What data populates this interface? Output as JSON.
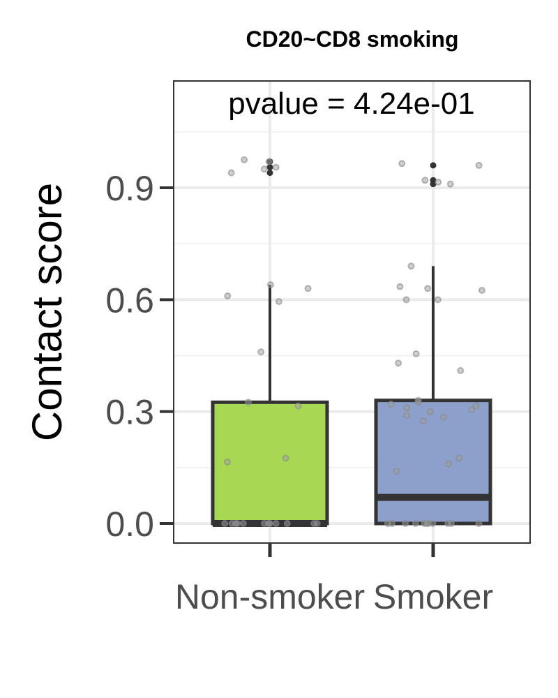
{
  "chart_data": {
    "type": "box",
    "title": "CD20~CD8 smoking",
    "annotation": "pvalue = 4.24e-01",
    "xlabel": "",
    "ylabel": "Contact score",
    "categories": [
      "Non-smoker",
      "Smoker"
    ],
    "ylim": [
      -0.05,
      1.18
    ],
    "yticks": [
      0.0,
      0.3,
      0.6,
      0.9
    ],
    "ytick_labels": [
      "0.0",
      "0.3",
      "0.6",
      "0.9"
    ],
    "grid": true,
    "boxes": [
      {
        "category": "Non-smoker",
        "color": "#a6d854",
        "min": 0.0,
        "q1": 0.0,
        "median": 0.0,
        "q3": 0.325,
        "whisker_high": 0.64,
        "outliers": [
          0.97,
          0.955,
          0.94
        ],
        "points": [
          0.97,
          0.955,
          0.94,
          0.975,
          0.95,
          0.64,
          0.61,
          0.63,
          0.595,
          0.46,
          0.325,
          0.315,
          0.175,
          0.165,
          0,
          0,
          0,
          0,
          0,
          0,
          0,
          0,
          0,
          0,
          0,
          0
        ]
      },
      {
        "category": "Smoker",
        "color": "#8da0cb",
        "min": 0.0,
        "q1": 0.0,
        "median": 0.07,
        "q3": 0.33,
        "whisker_high": 0.69,
        "outliers": [
          0.96,
          0.92,
          0.91
        ],
        "points": [
          0.96,
          0.965,
          0.92,
          0.915,
          0.91,
          0.69,
          0.635,
          0.625,
          0.63,
          0.6,
          0.6,
          0.455,
          0.43,
          0.41,
          0.33,
          0.325,
          0.32,
          0.315,
          0.31,
          0.305,
          0.3,
          0.29,
          0.285,
          0.275,
          0.175,
          0.16,
          0.14,
          0,
          0,
          0,
          0,
          0,
          0,
          0,
          0,
          0,
          0,
          0
        ]
      }
    ]
  }
}
